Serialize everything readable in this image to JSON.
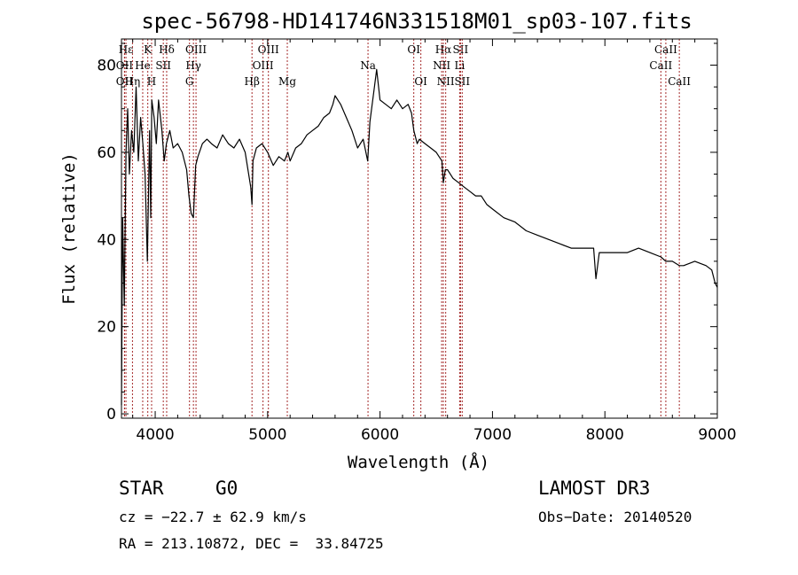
{
  "chart_data": {
    "type": "line",
    "title": "spec-56798-HD141746N331518M01_sp03-107.fits",
    "xlabel": "Wavelength (Å)",
    "ylabel": "Flux (relative)",
    "xlim": [
      3700,
      9000
    ],
    "ylim": [
      -1,
      86
    ],
    "xticks": [
      4000,
      5000,
      6000,
      7000,
      8000,
      9000
    ],
    "yticks": [
      0,
      20,
      40,
      60,
      80
    ],
    "grid": false,
    "line_color": "#000000",
    "marker_color": "#a52a2a",
    "series": [
      {
        "x": [
          3700,
          3710,
          3725,
          3740,
          3755,
          3770,
          3790,
          3810,
          3830,
          3850,
          3870,
          3890,
          3910,
          3930,
          3950,
          3960,
          3970,
          3990,
          4010,
          4030,
          4060,
          4080,
          4100,
          4130,
          4160,
          4200,
          4240,
          4280,
          4300,
          4320,
          4340,
          4360,
          4380,
          4420,
          4460,
          4500,
          4550,
          4600,
          4650,
          4700,
          4750,
          4800,
          4850,
          4861,
          4870,
          4900,
          4950,
          5000,
          5050,
          5100,
          5150,
          5180,
          5200,
          5250,
          5300,
          5350,
          5400,
          5450,
          5500,
          5550,
          5580,
          5600,
          5650,
          5700,
          5750,
          5800,
          5850,
          5890,
          5910,
          5950,
          5970,
          6000,
          6050,
          6100,
          6150,
          6200,
          6250,
          6280,
          6300,
          6330,
          6350,
          6400,
          6450,
          6500,
          6550,
          6563,
          6580,
          6600,
          6650,
          6700,
          6750,
          6800,
          6850,
          6900,
          6950,
          7000,
          7100,
          7200,
          7300,
          7400,
          7500,
          7600,
          7700,
          7800,
          7900,
          7920,
          7950,
          8000,
          8100,
          8200,
          8300,
          8400,
          8498,
          8542,
          8600,
          8662,
          8700,
          8800,
          8900,
          8950,
          8980,
          9000
        ],
        "y": [
          2,
          45,
          25,
          60,
          70,
          55,
          65,
          60,
          75,
          58,
          68,
          62,
          55,
          35,
          65,
          45,
          72,
          68,
          62,
          72,
          65,
          58,
          62,
          65,
          61,
          62,
          60,
          56,
          50,
          46,
          45,
          57,
          59,
          62,
          63,
          62,
          61,
          64,
          62,
          61,
          63,
          60,
          52,
          48,
          58,
          61,
          62,
          60,
          57,
          59,
          58,
          60,
          58,
          61,
          62,
          64,
          65,
          66,
          68,
          69,
          71,
          73,
          71,
          68,
          65,
          61,
          63,
          58,
          67,
          75,
          79,
          72,
          71,
          70,
          72,
          70,
          71,
          69,
          65,
          62,
          63,
          62,
          61,
          60,
          58,
          53,
          56,
          56,
          54,
          53,
          52,
          51,
          50,
          50,
          48,
          47,
          45,
          44,
          42,
          41,
          40,
          39,
          38,
          38,
          38,
          31,
          37,
          37,
          37,
          37,
          38,
          37,
          36,
          35,
          35,
          34,
          34,
          35,
          34,
          33,
          30,
          29
        ]
      }
    ],
    "spectral_lines": [
      {
        "label": "Hε",
        "wavelength": 3740,
        "row": 1
      },
      {
        "label": "OII",
        "wavelength": 3727,
        "row": 2
      },
      {
        "label": "OII",
        "wavelength": 3727,
        "row": 3
      },
      {
        "label": "Hη",
        "wavelength": 3798,
        "row": 3
      },
      {
        "label": "He",
        "wavelength": 3889,
        "row": 2
      },
      {
        "label": "K",
        "wavelength": 3934,
        "row": 1
      },
      {
        "label": "H",
        "wavelength": 3968,
        "row": 3
      },
      {
        "label": "SII",
        "wavelength": 4072,
        "row": 2
      },
      {
        "label": "Hδ",
        "wavelength": 4102,
        "row": 1
      },
      {
        "label": "OIII",
        "wavelength": 4363,
        "row": 1
      },
      {
        "label": "Hγ",
        "wavelength": 4340,
        "row": 2
      },
      {
        "label": "G",
        "wavelength": 4305,
        "row": 3
      },
      {
        "label": "Hβ",
        "wavelength": 4861,
        "row": 3
      },
      {
        "label": "OIII",
        "wavelength": 4959,
        "row": 2
      },
      {
        "label": "OIII",
        "wavelength": 5007,
        "row": 1
      },
      {
        "label": "Mg",
        "wavelength": 5175,
        "row": 3
      },
      {
        "label": "Na",
        "wavelength": 5893,
        "row": 2
      },
      {
        "label": "OI",
        "wavelength": 6300,
        "row": 1
      },
      {
        "label": "OI",
        "wavelength": 6363,
        "row": 3
      },
      {
        "label": "Hα",
        "wavelength": 6563,
        "row": 1
      },
      {
        "label": "NII",
        "wavelength": 6548,
        "row": 2
      },
      {
        "label": "NII",
        "wavelength": 6584,
        "row": 3
      },
      {
        "label": "SII",
        "wavelength": 6716,
        "row": 1
      },
      {
        "label": "Li",
        "wavelength": 6708,
        "row": 2
      },
      {
        "label": "SII",
        "wavelength": 6731,
        "row": 3
      },
      {
        "label": "CaII",
        "wavelength": 8542,
        "row": 1
      },
      {
        "label": "CaII",
        "wavelength": 8498,
        "row": 2
      },
      {
        "label": "CaII",
        "wavelength": 8662,
        "row": 3
      }
    ]
  },
  "info": {
    "class_label": "STAR",
    "subclass": "G0",
    "survey": "LAMOST DR3",
    "cz": "cz = −22.7 ± 62.9 km/s",
    "obs_date": "Obs−Date: 20140520",
    "coords": "RA = 213.10872, DEC =  33.84725"
  }
}
